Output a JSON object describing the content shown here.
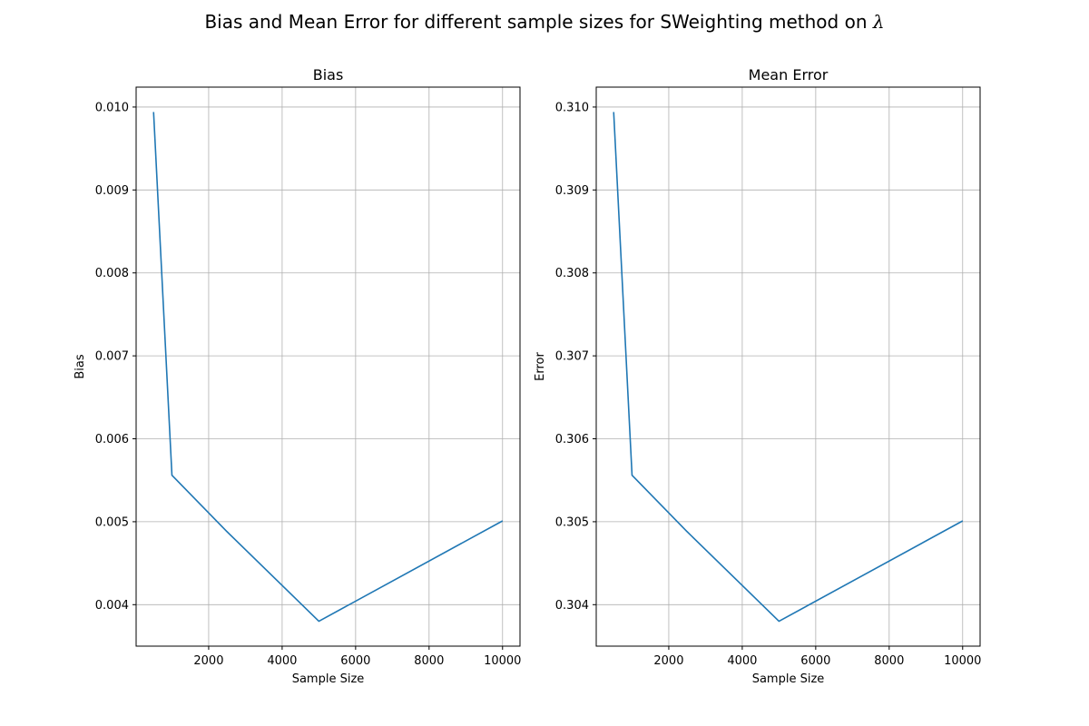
{
  "figure": {
    "suptitle": "Bias and Mean Error for different sample sizes for SWeighting method on",
    "suptitle_symbol": "λ"
  },
  "chart_data": [
    {
      "type": "line",
      "title": "Bias",
      "xlabel": "Sample Size",
      "ylabel": "Bias",
      "grid": true,
      "color": "#1f77b4",
      "x": [
        500,
        1000,
        2500,
        5000,
        10000
      ],
      "y": [
        0.00994,
        0.00556,
        0.00488,
        0.0038,
        0.00501
      ],
      "xlim": [
        25,
        10475
      ],
      "ylim": [
        0.0035,
        0.01024
      ],
      "xticks": [
        2000,
        4000,
        6000,
        8000,
        10000
      ],
      "xtick_labels": [
        "2000",
        "4000",
        "6000",
        "8000",
        "10000"
      ],
      "yticks": [
        0.004,
        0.005,
        0.006,
        0.007,
        0.008,
        0.009,
        0.01
      ],
      "ytick_labels": [
        "0.004",
        "0.005",
        "0.006",
        "0.007",
        "0.008",
        "0.009",
        "0.010"
      ]
    },
    {
      "type": "line",
      "title": "Mean Error",
      "xlabel": "Sample Size",
      "ylabel": "Error",
      "grid": true,
      "color": "#1f77b4",
      "x": [
        500,
        1000,
        2500,
        5000,
        10000
      ],
      "y": [
        0.30994,
        0.30556,
        0.30488,
        0.3038,
        0.30501
      ],
      "xlim": [
        25,
        10475
      ],
      "ylim": [
        0.3035,
        0.31024
      ],
      "xticks": [
        2000,
        4000,
        6000,
        8000,
        10000
      ],
      "xtick_labels": [
        "2000",
        "4000",
        "6000",
        "8000",
        "10000"
      ],
      "yticks": [
        0.304,
        0.305,
        0.306,
        0.307,
        0.308,
        0.309,
        0.31
      ],
      "ytick_labels": [
        "0.304",
        "0.305",
        "0.306",
        "0.307",
        "0.308",
        "0.309",
        "0.310"
      ]
    }
  ]
}
